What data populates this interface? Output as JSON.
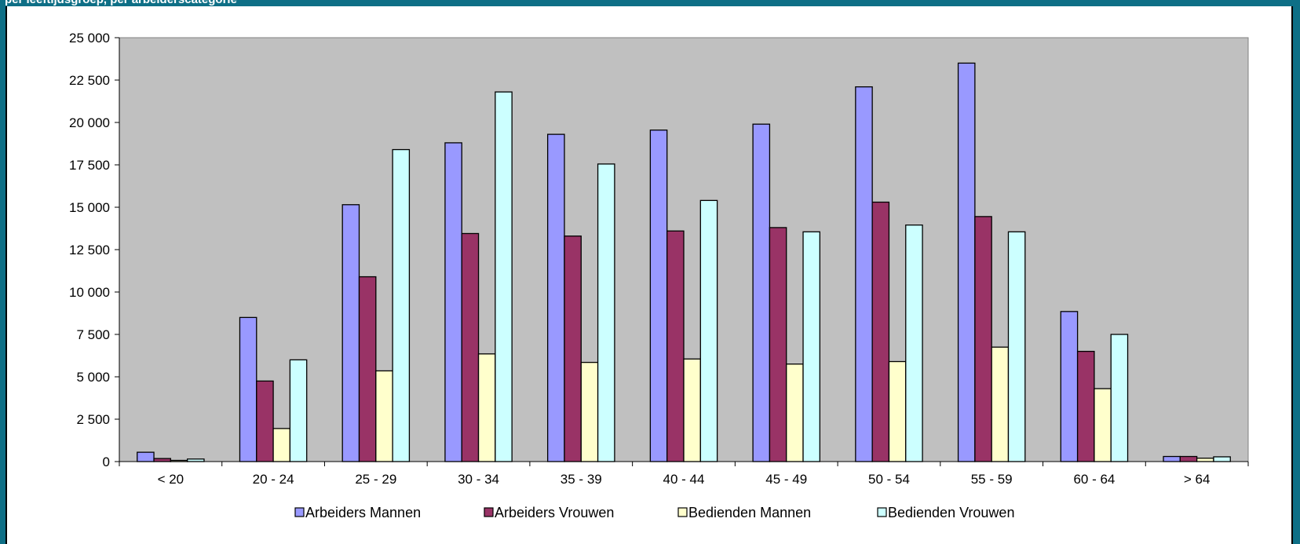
{
  "header": {
    "strip_text": "per leeftijdsgroep, per arbeiderscategorie"
  },
  "chart_data": {
    "type": "bar",
    "title": "",
    "xlabel": "",
    "ylabel": "",
    "ylim": [
      0,
      25000
    ],
    "yticks": [
      0,
      2500,
      5000,
      7500,
      10000,
      12500,
      15000,
      17500,
      20000,
      22500,
      25000
    ],
    "ytick_labels": [
      "0",
      "2 500",
      "5 000",
      "7 500",
      "10 000",
      "12 500",
      "15 000",
      "17 500",
      "20 000",
      "22 500",
      "25 000"
    ],
    "grid": false,
    "plot_background": "#c0c0c0",
    "legend_position": "bottom",
    "categories": [
      "< 20",
      "20 - 24",
      "25 - 29",
      "30 - 34",
      "35 - 39",
      "40 - 44",
      "45 - 49",
      "50 - 54",
      "55 - 59",
      "60 - 64",
      "> 64"
    ],
    "series": [
      {
        "name": "Arbeiders Mannen",
        "color": "#9999ff",
        "values": [
          550,
          8500,
          15150,
          18800,
          19300,
          19550,
          19900,
          22100,
          23500,
          8850,
          300
        ]
      },
      {
        "name": "Arbeiders Vrouwen",
        "color": "#993366",
        "values": [
          180,
          4750,
          10900,
          13450,
          13300,
          13600,
          13800,
          15300,
          14450,
          6500,
          300
        ]
      },
      {
        "name": "Bedienden Mannen",
        "color": "#ffffcc",
        "values": [
          70,
          1950,
          5350,
          6350,
          5850,
          6050,
          5750,
          5900,
          6750,
          4300,
          200
        ]
      },
      {
        "name": "Bedienden Vrouwen",
        "color": "#ccffff",
        "values": [
          150,
          6000,
          18400,
          21800,
          17550,
          15400,
          13550,
          13950,
          13550,
          7500,
          280
        ]
      }
    ]
  }
}
